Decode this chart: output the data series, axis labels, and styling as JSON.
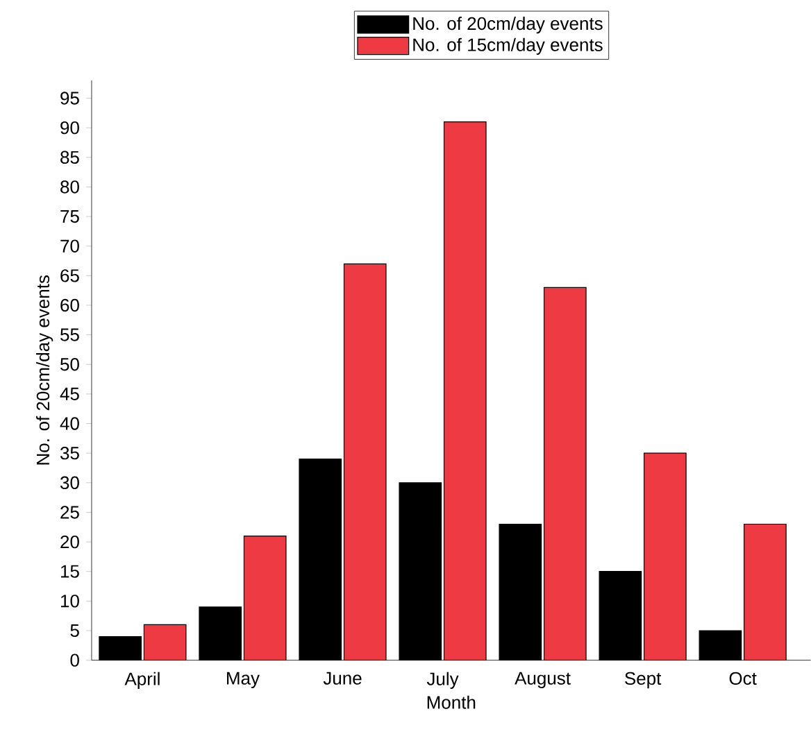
{
  "chart_data": {
    "type": "bar",
    "xlabel": "Month",
    "ylabel": "No. of 20cm/day events",
    "categories": [
      "April",
      "May",
      "June",
      "July",
      "August",
      "Sept",
      "Oct"
    ],
    "series": [
      {
        "name": "No. of 20cm/day events",
        "color": "#000000",
        "values": [
          4,
          9,
          34,
          30,
          23,
          15,
          5
        ]
      },
      {
        "name": "No. of 15cm/day events",
        "color": "#ee3a43",
        "values": [
          6,
          21,
          67,
          91,
          63,
          35,
          23
        ]
      }
    ],
    "ylim": [
      0,
      98
    ],
    "yticks": [
      0,
      5,
      10,
      15,
      20,
      25,
      30,
      35,
      40,
      45,
      50,
      55,
      60,
      65,
      70,
      75,
      80,
      85,
      90,
      95
    ],
    "legend": "top",
    "grid": false
  }
}
